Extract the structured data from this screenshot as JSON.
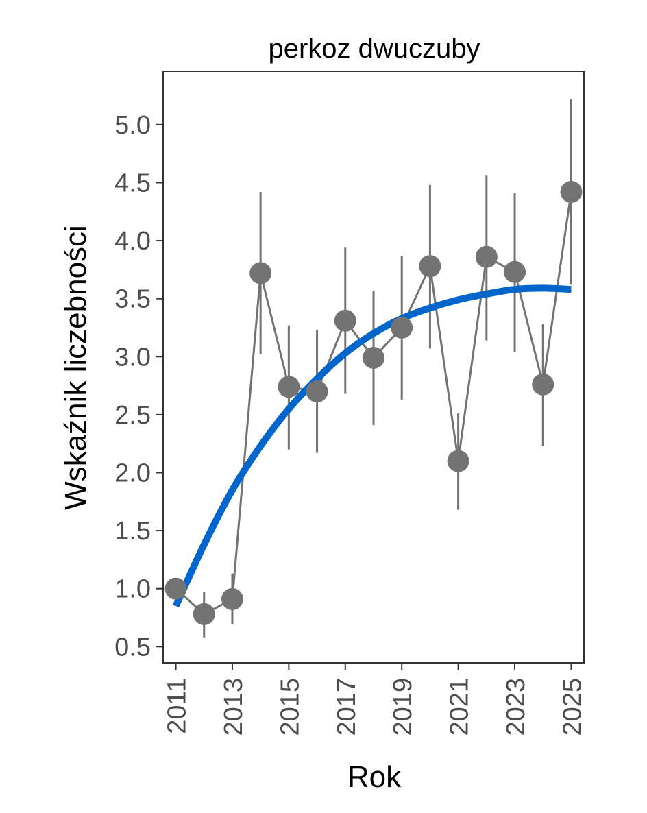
{
  "chart_data": {
    "type": "line",
    "title": "perkoz dwuczuby",
    "xlabel": "Rok",
    "ylabel": "Wskaźnik liczebności",
    "xlim": [
      2010.55,
      2025.45
    ],
    "ylim": [
      0.36,
      5.46
    ],
    "x_ticks": [
      2011,
      2013,
      2015,
      2017,
      2019,
      2021,
      2023,
      2025
    ],
    "x_tick_labels": [
      "2011",
      "2013",
      "2015",
      "2017",
      "2019",
      "2021",
      "2023",
      "2025"
    ],
    "y_ticks": [
      0.5,
      1.0,
      1.5,
      2.0,
      2.5,
      3.0,
      3.5,
      4.0,
      4.5,
      5.0
    ],
    "y_tick_labels": [
      "0.5",
      "1.0",
      "1.5",
      "2.0",
      "2.5",
      "3.0",
      "3.5",
      "4.0",
      "4.5",
      "5.0"
    ],
    "grid": false,
    "legend": "none",
    "series": [
      {
        "x": [
          2011,
          2012,
          2013,
          2014,
          2015,
          2016,
          2017,
          2018,
          2019,
          2020,
          2021,
          2022,
          2023,
          2024,
          2025
        ],
        "values": [
          1.0,
          0.78,
          0.91,
          3.72,
          2.74,
          2.7,
          3.31,
          2.99,
          3.25,
          3.78,
          2.1,
          3.86,
          3.73,
          2.76,
          4.42
        ],
        "lower": [
          1.0,
          0.58,
          0.69,
          3.02,
          2.2,
          2.17,
          2.68,
          2.41,
          2.63,
          3.07,
          1.68,
          3.14,
          3.04,
          2.23,
          3.62
        ],
        "upper": [
          1.0,
          0.97,
          1.13,
          4.42,
          3.27,
          3.23,
          3.94,
          3.57,
          3.87,
          4.48,
          2.51,
          4.56,
          4.41,
          3.28,
          5.22
        ],
        "color": "#737373"
      },
      {
        "type": "trend",
        "x": [
          2011,
          2012,
          2013,
          2014,
          2015,
          2016,
          2017,
          2018,
          2019,
          2020,
          2021,
          2022,
          2023,
          2024,
          2025
        ],
        "values": [
          0.85,
          1.38,
          1.85,
          2.23,
          2.55,
          2.81,
          3.03,
          3.2,
          3.33,
          3.42,
          3.49,
          3.54,
          3.58,
          3.59,
          3.58
        ],
        "color": "#0066cc"
      }
    ]
  }
}
